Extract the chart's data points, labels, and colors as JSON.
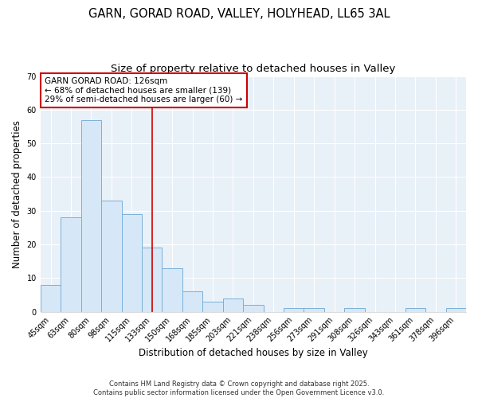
{
  "title1": "GARN, GORAD ROAD, VALLEY, HOLYHEAD, LL65 3AL",
  "title2": "Size of property relative to detached houses in Valley",
  "xlabel": "Distribution of detached houses by size in Valley",
  "ylabel": "Number of detached properties",
  "bar_labels": [
    "45sqm",
    "63sqm",
    "80sqm",
    "98sqm",
    "115sqm",
    "133sqm",
    "150sqm",
    "168sqm",
    "185sqm",
    "203sqm",
    "221sqm",
    "238sqm",
    "256sqm",
    "273sqm",
    "291sqm",
    "308sqm",
    "326sqm",
    "343sqm",
    "361sqm",
    "378sqm",
    "396sqm"
  ],
  "bar_values": [
    8,
    28,
    57,
    33,
    29,
    19,
    13,
    6,
    3,
    4,
    2,
    0,
    1,
    1,
    0,
    1,
    0,
    0,
    1,
    0,
    1
  ],
  "bar_color": "#d6e8f7",
  "bar_edge_color": "#7ab0d8",
  "vline_x": 5.0,
  "vline_color": "#cc0000",
  "annotation_text": "GARN GORAD ROAD: 126sqm\n← 68% of detached houses are smaller (139)\n29% of semi-detached houses are larger (60) →",
  "annotation_box_color": "#cc0000",
  "ylim": [
    0,
    70
  ],
  "yticks": [
    0,
    10,
    20,
    30,
    40,
    50,
    60,
    70
  ],
  "footnote": "Contains HM Land Registry data © Crown copyright and database right 2025.\nContains public sector information licensed under the Open Government Licence v3.0.",
  "background_color": "#ffffff",
  "plot_bg_color": "#e8f0f8",
  "grid_color": "#ffffff",
  "title_fontsize": 10.5,
  "subtitle_fontsize": 9.5,
  "tick_fontsize": 7,
  "ylabel_fontsize": 8.5,
  "xlabel_fontsize": 8.5,
  "footnote_fontsize": 6.0
}
